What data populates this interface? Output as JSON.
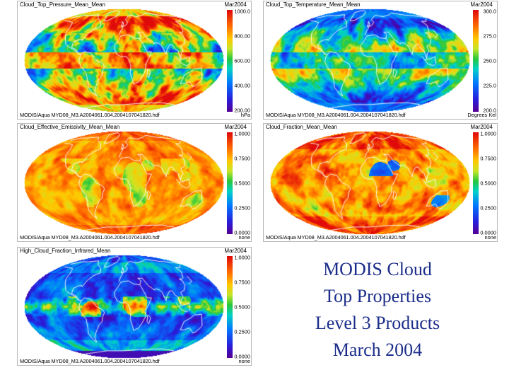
{
  "panels": [
    {
      "title": "Cloud_Top_Pressure_Mean_Mean",
      "date": "Mar2004",
      "footer": "MODIS/Aqua       MYD08_M3.A2004061.004.2004107041820.hdf",
      "units": "hPa",
      "colorbar_ticks": [
        "1000.0",
        "800.00",
        "600.00",
        "400.00",
        "200.00"
      ],
      "colorbar_range": [
        200,
        1000
      ],
      "colormap": "reversed",
      "pattern": "pressure"
    },
    {
      "title": "Cloud_Top_Temperature_Mean_Mean",
      "date": "Mar2004",
      "footer": "MODIS/Aqua       MYD08_M3.A2004061.004.2004107041820.hdf",
      "units": "Degrees Kel",
      "colorbar_ticks": [
        "300.0",
        "275.0",
        "250.0",
        "225.0",
        "200.0"
      ],
      "colorbar_range": [
        200,
        300
      ],
      "colormap": "normal",
      "pattern": "temperature"
    },
    {
      "title": "Cloud_Effective_Emissivity_Mean_Mean",
      "date": "Mar2004",
      "footer": "MODIS/Aqua       MYD08_M3.A2004061.004.2004107041820.hdf",
      "units": "none",
      "colorbar_ticks": [
        "1.0000",
        "0.7500",
        "0.5000",
        "0.2500",
        "0.0000"
      ],
      "colorbar_range": [
        0,
        1
      ],
      "colormap": "normal",
      "pattern": "emissivity"
    },
    {
      "title": "Cloud_Fraction_Mean_Mean",
      "date": "Mar2004",
      "footer": "MODIS/Aqua       MYD08_M3.A2004061.004.2004107041820.hdf",
      "units": "none",
      "colorbar_ticks": [
        "1.0000",
        "0.7500",
        "0.5000",
        "0.2500",
        "0.0000"
      ],
      "colorbar_range": [
        0,
        1
      ],
      "colormap": "normal",
      "pattern": "fraction"
    },
    {
      "title": "High_Cloud_Fraction_Infrared_Mean",
      "date": "Mar2004",
      "footer": "MODIS/Aqua       MYD08_M3.A2004061.004.2004107041820.hdf",
      "units": "none",
      "colorbar_ticks": [
        "1.0000",
        "0.7500",
        "0.5000",
        "0.2500",
        "0.0000"
      ],
      "colorbar_range": [
        0,
        1
      ],
      "colormap": "normal",
      "pattern": "highcloud"
    }
  ],
  "caption": {
    "line1": "MODIS Cloud",
    "line2": "Top Properties",
    "line3": "Level 3 Products",
    "line4": "March 2004"
  },
  "colors": {
    "caption_text": "#1b2d8a",
    "coastline": "#ffffff"
  }
}
